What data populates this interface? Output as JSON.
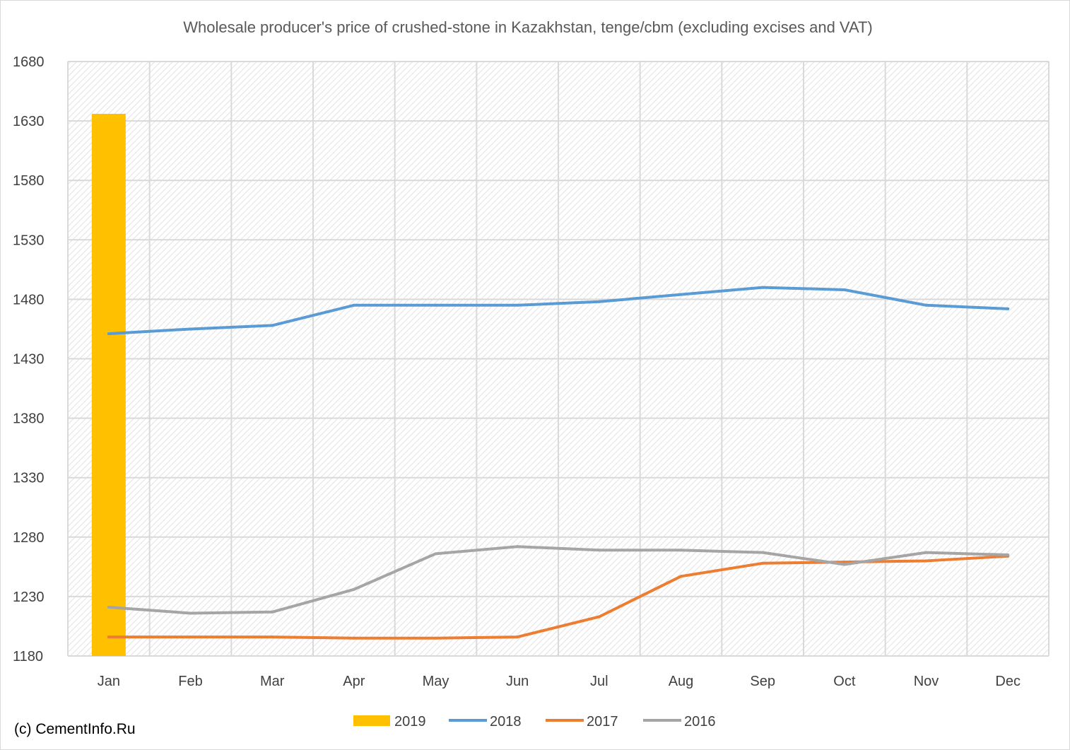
{
  "chart_data": {
    "type": "bar",
    "title": "Wholesale producer's price of crushed-stone in Kazakhstan, tenge/cbm (excluding excises and VAT)",
    "xlabel": "",
    "ylabel": "",
    "categories": [
      "Jan",
      "Feb",
      "Mar",
      "Apr",
      "May",
      "Jun",
      "Jul",
      "Aug",
      "Sep",
      "Oct",
      "Nov",
      "Dec"
    ],
    "ylim": [
      1180,
      1680
    ],
    "yticks": [
      "1680",
      "1630",
      "1580",
      "1530",
      "1480",
      "1430",
      "1380",
      "1330",
      "1280",
      "1230",
      "1180"
    ],
    "grid": true,
    "legend_position": "bottom",
    "series": [
      {
        "name": "2019",
        "kind": "bar",
        "color": "#FFC000",
        "values": [
          1636,
          null,
          null,
          null,
          null,
          null,
          null,
          null,
          null,
          null,
          null,
          null
        ]
      },
      {
        "name": "2018",
        "kind": "line",
        "color": "#5B9BD5",
        "values": [
          1451,
          1455,
          1458,
          1475,
          1475,
          1475,
          1478,
          1484,
          1490,
          1488,
          1475,
          1472
        ]
      },
      {
        "name": "2017",
        "kind": "line",
        "color": "#ED7D31",
        "values": [
          1196,
          1196,
          1196,
          1195,
          1195,
          1196,
          1213,
          1247,
          1258,
          1259,
          1260,
          1264
        ]
      },
      {
        "name": "2016",
        "kind": "line",
        "color": "#A5A5A5",
        "values": [
          1221,
          1216,
          1217,
          1236,
          1266,
          1272,
          1269,
          1269,
          1267,
          1257,
          1267,
          1265
        ]
      }
    ]
  },
  "footer": {
    "copyright": "(c) CementInfo.Ru"
  }
}
